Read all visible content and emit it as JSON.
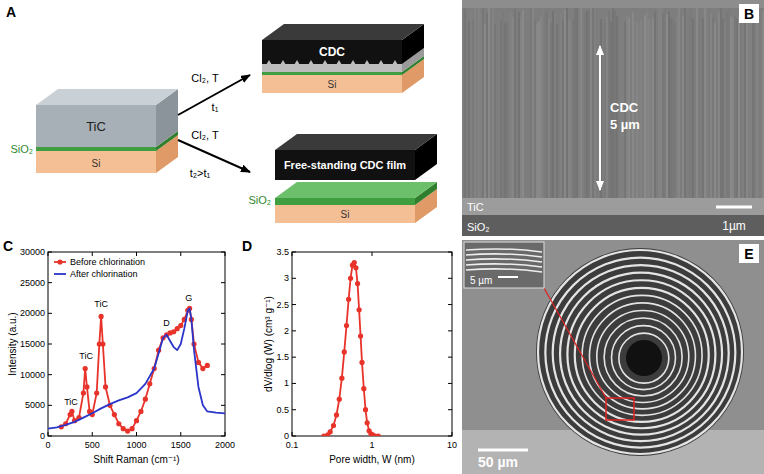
{
  "panel_labels": [
    "A",
    "B",
    "C",
    "D",
    "E"
  ],
  "panels": {
    "A": {
      "start": {
        "top": "TiC",
        "middle": "SiO₂",
        "bottom": "Si"
      },
      "routes": [
        {
          "condition": "Cl₂, T",
          "time": "t₁",
          "top": "CDC",
          "bottom": "Si"
        },
        {
          "condition": "Cl₂, T",
          "time": "t₂>t₁",
          "top": "Free-standing CDC film",
          "middle": "SiO₂",
          "bottom": "Si"
        }
      ]
    },
    "B": {
      "thickness_label": "CDC",
      "thickness": "5 µm",
      "layers": [
        "TiC",
        "SiO₂"
      ],
      "scale_bar": "1µm"
    },
    "E": {
      "inset_scale_bar": "5 µm",
      "scale_bar": "50 µm"
    }
  },
  "chart_data": [
    {
      "type": "line",
      "x_label": "Shift Raman (cm⁻¹)",
      "y_label": "Intensity (a.u.)",
      "xlim": [
        0,
        2000
      ],
      "xticks": [
        0,
        500,
        1000,
        1500,
        2000
      ],
      "ylim": [
        0,
        30000
      ],
      "yticks": [
        0,
        5000,
        10000,
        15000,
        20000,
        25000,
        30000
      ],
      "legend": "top-left",
      "series": [
        {
          "name": "Before chlorination",
          "color": "#e8332a",
          "marker": "circle",
          "line_style": "solid",
          "x": [
            150,
            200,
            250,
            270,
            300,
            350,
            400,
            420,
            440,
            470,
            500,
            550,
            580,
            600,
            620,
            650,
            700,
            750,
            800,
            850,
            900,
            950,
            1000,
            1050,
            1100,
            1150,
            1200,
            1250,
            1300,
            1340,
            1380,
            1420,
            1460,
            1500,
            1540,
            1580,
            1600,
            1620,
            1650,
            1700,
            1750,
            1800
          ],
          "values": [
            1500,
            2000,
            3500,
            4000,
            2500,
            3000,
            7000,
            11000,
            8000,
            4000,
            3500,
            7000,
            15000,
            19500,
            15000,
            8000,
            5000,
            3500,
            2000,
            1200,
            800,
            1200,
            2500,
            4000,
            6000,
            8500,
            11000,
            14000,
            16000,
            16500,
            16800,
            17000,
            17500,
            18000,
            19000,
            20500,
            20800,
            19000,
            15000,
            12000,
            11000,
            11500
          ]
        },
        {
          "name": "After chlorination",
          "color": "#2a35c9",
          "marker": "none",
          "line_style": "solid",
          "x": [
            0,
            100,
            200,
            300,
            400,
            500,
            600,
            700,
            800,
            900,
            1000,
            1100,
            1200,
            1250,
            1300,
            1340,
            1380,
            1420,
            1460,
            1500,
            1540,
            1580,
            1600,
            1620,
            1650,
            1700,
            1750,
            1800,
            1900,
            2000
          ],
          "values": [
            1200,
            1400,
            1800,
            2300,
            3000,
            3700,
            4500,
            5200,
            5800,
            6300,
            7000,
            8500,
            11000,
            13500,
            16000,
            16500,
            15500,
            14500,
            14000,
            15000,
            17500,
            20500,
            20800,
            19000,
            14000,
            8000,
            5000,
            4000,
            3800,
            3700
          ]
        }
      ],
      "annotations": [
        {
          "text": "TiC",
          "x": 260,
          "y": 5000
        },
        {
          "text": "TiC",
          "x": 430,
          "y": 12500
        },
        {
          "text": "TiC",
          "x": 600,
          "y": 21000
        },
        {
          "text": "D",
          "x": 1340,
          "y": 18000
        },
        {
          "text": "G",
          "x": 1590,
          "y": 22000
        }
      ]
    },
    {
      "type": "line",
      "log": "x",
      "x_label": "Pore width, W (nm)",
      "y_label": "dV/dlog (W) (cm³ g⁻¹)",
      "xlim": [
        0.1,
        10
      ],
      "xticks": [
        0.1,
        1,
        10
      ],
      "ylim": [
        0,
        3.5
      ],
      "yticks": [
        0,
        0.5,
        1,
        1.5,
        2,
        2.5,
        3,
        3.5
      ],
      "series": [
        {
          "color": "#e8332a",
          "marker": "circle",
          "line_style": "solid",
          "x": [
            0.25,
            0.28,
            0.3,
            0.33,
            0.36,
            0.39,
            0.42,
            0.45,
            0.48,
            0.51,
            0.54,
            0.57,
            0.6,
            0.63,
            0.66,
            0.69,
            0.72,
            0.75,
            0.79,
            0.83,
            0.87,
            0.92,
            0.97,
            1.02,
            1.1,
            1.2
          ],
          "values": [
            0,
            0.02,
            0.08,
            0.2,
            0.4,
            0.7,
            1.1,
            1.6,
            2.1,
            2.6,
            3,
            3.25,
            3.3,
            3.2,
            2.9,
            2.4,
            1.9,
            1.4,
            0.9,
            0.5,
            0.25,
            0.1,
            0.04,
            0.02,
            0,
            0
          ]
        }
      ]
    }
  ]
}
